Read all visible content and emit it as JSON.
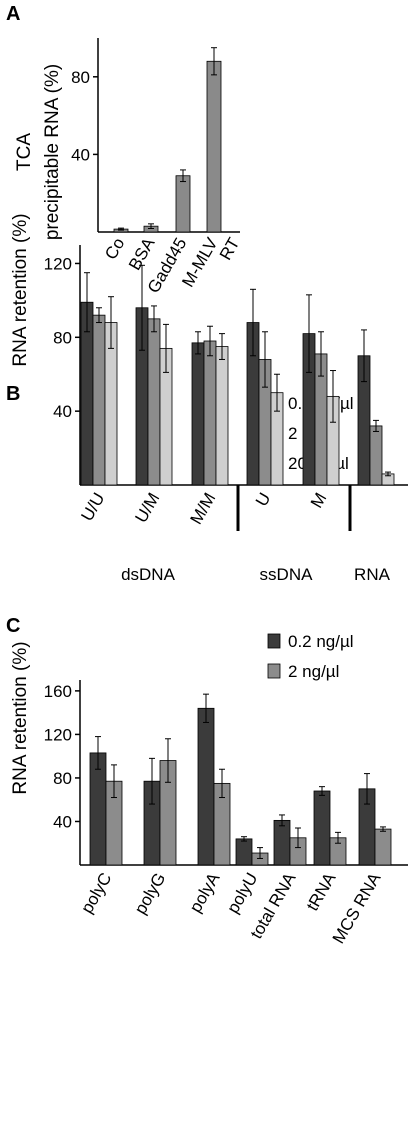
{
  "chart_data": [
    {
      "type": "bar",
      "panel": "A",
      "ylabel_lines": [
        "TCA",
        "precipitable RNA (%)"
      ],
      "yticks": [
        40,
        80
      ],
      "ylim": [
        0,
        100
      ],
      "categories": [
        [
          "Co"
        ],
        [
          "BSA"
        ],
        [
          "Gadd45"
        ],
        [
          "M-MLV",
          "RT"
        ]
      ],
      "series": [
        {
          "color": "#8a8a8a",
          "values": [
            1.5,
            3,
            29,
            88
          ],
          "errors": [
            0.5,
            1.2,
            3,
            7
          ]
        }
      ]
    },
    {
      "type": "bar",
      "panel": "B",
      "ylabel": "RNA retention (%)",
      "yticks": [
        40,
        80,
        120
      ],
      "ylim": [
        0,
        130
      ],
      "categories": [
        "U/U",
        "U/M",
        "M/M",
        "U",
        "M",
        ""
      ],
      "groups": [
        "dsDNA",
        "ssDNA",
        "RNA"
      ],
      "legend_position": "top-right",
      "series": [
        {
          "name": "0.2 ng/µl",
          "color": "#3b3b3b",
          "values": [
            99,
            96,
            77,
            88,
            82,
            70
          ],
          "errors": [
            16,
            23,
            6,
            18,
            21,
            14
          ]
        },
        {
          "name": "2 ng/µl",
          "color": "#8c8c8c",
          "values": [
            92,
            90,
            78,
            68,
            71,
            32
          ],
          "errors": [
            4,
            7,
            8,
            15,
            12,
            3
          ]
        },
        {
          "name": "20 ng/µl",
          "color": "#cfcfcf",
          "values": [
            88,
            74,
            75,
            50,
            48,
            6
          ],
          "errors": [
            14,
            13,
            7,
            10,
            14,
            1
          ]
        }
      ]
    },
    {
      "type": "bar",
      "panel": "C",
      "ylabel": "RNA retention (%)",
      "yticks": [
        40,
        80,
        120,
        160
      ],
      "ylim": [
        0,
        170
      ],
      "categories": [
        "polyC",
        "polyG",
        "polyA",
        "polyU",
        "total RNA",
        "tRNA",
        "MCS RNA"
      ],
      "legend_position": "top-right",
      "series": [
        {
          "name": "0.2 ng/µl",
          "color": "#3b3b3b",
          "values": [
            103,
            77,
            144,
            24,
            41,
            68,
            70
          ],
          "errors": [
            15,
            21,
            13,
            2,
            5,
            4,
            14
          ]
        },
        {
          "name": "2 ng/µl",
          "color": "#8c8c8c",
          "values": [
            77,
            96,
            75,
            11,
            25,
            25,
            33
          ],
          "errors": [
            15,
            20,
            13,
            5,
            9,
            5,
            2
          ]
        }
      ]
    }
  ]
}
